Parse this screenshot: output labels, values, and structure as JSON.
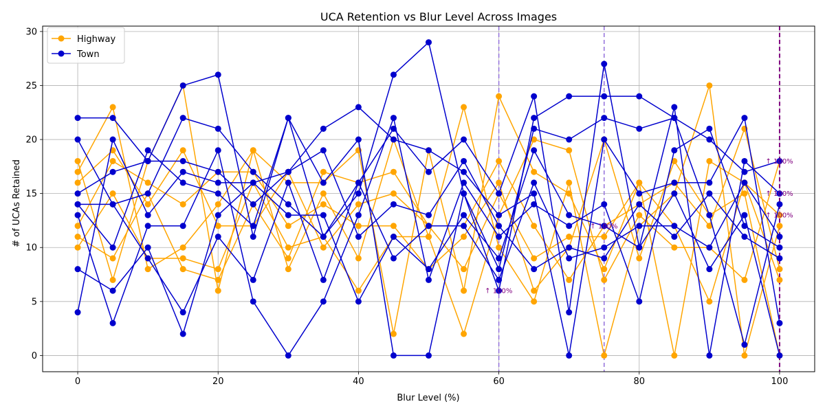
{
  "chart_data": {
    "type": "line",
    "title": "UCA Retention vs Blur Level Across Images",
    "xlabel": "Blur Level (%)",
    "ylabel": "# of UCAs Retained",
    "xlim": [
      -5,
      105
    ],
    "ylim": [
      -1.5,
      30.5
    ],
    "xticks": [
      0,
      20,
      40,
      60,
      80,
      100
    ],
    "yticks": [
      0,
      5,
      10,
      15,
      20,
      25,
      30
    ],
    "grid": true,
    "legend_position": "top-left",
    "colors": {
      "Highway": "#ffa500",
      "Town": "#0000cd",
      "vline": "#9370db",
      "vline_main": "#800080",
      "annotation": "#800080"
    },
    "x": [
      0,
      5,
      10,
      15,
      20,
      25,
      30,
      35,
      40,
      45,
      50,
      55,
      60,
      65,
      70,
      75,
      80,
      85,
      90,
      95,
      100
    ],
    "series": [
      {
        "name": "Highway",
        "group": "Highway",
        "values": [
          18,
          7,
          18,
          25,
          6,
          19,
          8,
          15,
          9,
          20,
          11,
          23,
          10,
          5,
          16,
          0,
          12,
          15,
          25,
          0,
          12
        ]
      },
      {
        "name": "Highway",
        "group": "Highway",
        "values": [
          17,
          23,
          8,
          10,
          14,
          19,
          16,
          16,
          19,
          2,
          19,
          6,
          24,
          17,
          15,
          8,
          16,
          0,
          18,
          16,
          7
        ]
      },
      {
        "name": "Highway",
        "group": "Highway",
        "values": [
          16,
          19,
          14,
          19,
          12,
          12,
          17,
          10,
          14,
          15,
          12,
          12,
          18,
          12,
          7,
          12,
          14,
          16,
          12,
          21,
          8
        ]
      },
      {
        "name": "Highway",
        "group": "Highway",
        "values": [
          12,
          18,
          16,
          14,
          17,
          17,
          12,
          14,
          12,
          12,
          8,
          11,
          16,
          6,
          10,
          20,
          9,
          18,
          13,
          15,
          0
        ]
      },
      {
        "name": "Highway",
        "group": "Highway",
        "values": [
          10,
          15,
          9,
          9,
          8,
          16,
          10,
          11,
          6,
          11,
          11,
          2,
          13,
          20,
          19,
          7,
          13,
          10,
          10,
          7,
          18
        ]
      },
      {
        "name": "Highway",
        "group": "Highway",
        "values": [
          11,
          9,
          15,
          8,
          7,
          14,
          9,
          17,
          16,
          17,
          12,
          8,
          15,
          9,
          11,
          11,
          16,
          12,
          5,
          16,
          13
        ]
      },
      {
        "name": "Town",
        "group": "Town",
        "values": [
          22,
          22,
          18,
          25,
          26,
          11,
          22,
          11,
          15,
          26,
          29,
          15,
          6,
          22,
          24,
          24,
          24,
          22,
          20,
          17,
          18
        ]
      },
      {
        "name": "Town",
        "group": "Town",
        "values": [
          20,
          14,
          15,
          22,
          21,
          17,
          14,
          11,
          16,
          21,
          17,
          20,
          15,
          24,
          4,
          27,
          10,
          23,
          0,
          18,
          15
        ]
      },
      {
        "name": "Town",
        "group": "Town",
        "values": [
          15,
          17,
          18,
          18,
          17,
          14,
          17,
          21,
          23,
          20,
          19,
          17,
          13,
          15,
          0,
          20,
          15,
          16,
          16,
          22,
          3
        ]
      },
      {
        "name": "Town",
        "group": "Town",
        "values": [
          14,
          10,
          19,
          16,
          15,
          12,
          22,
          16,
          20,
          0,
          0,
          15,
          8,
          21,
          20,
          22,
          21,
          22,
          13,
          1,
          14
        ]
      },
      {
        "name": "Town",
        "group": "Town",
        "values": [
          13,
          3,
          12,
          12,
          19,
          5,
          0,
          5,
          13,
          22,
          7,
          16,
          11,
          14,
          12,
          14,
          5,
          19,
          21,
          12,
          10
        ]
      },
      {
        "name": "Town",
        "group": "Town",
        "values": [
          4,
          20,
          13,
          17,
          16,
          16,
          17,
          19,
          11,
          14,
          13,
          18,
          12,
          8,
          10,
          9,
          14,
          11,
          15,
          11,
          9
        ]
      },
      {
        "name": "Town",
        "group": "Town",
        "values": [
          8,
          6,
          10,
          2,
          13,
          16,
          13,
          13,
          5,
          11,
          8,
          13,
          9,
          19,
          13,
          12,
          10,
          15,
          8,
          13,
          0
        ]
      },
      {
        "name": "Town",
        "group": "Town",
        "values": [
          14,
          14,
          9,
          4,
          11,
          7,
          16,
          7,
          16,
          9,
          12,
          12,
          7,
          16,
          9,
          10,
          12,
          12,
          10,
          16,
          11
        ]
      }
    ],
    "vlines": [
      60,
      75,
      100
    ],
    "annotations": [
      {
        "x": 58,
        "y": 6,
        "text": "↑ 100%"
      },
      {
        "x": 73,
        "y": 12,
        "text": "↑ 100%"
      },
      {
        "x": 98,
        "y": 18,
        "text": "↑ 100%"
      },
      {
        "x": 98,
        "y": 15,
        "text": "↑ 100%"
      },
      {
        "x": 98,
        "y": 13,
        "text": "↑ 100%"
      }
    ],
    "legend": [
      "Highway",
      "Town"
    ]
  }
}
